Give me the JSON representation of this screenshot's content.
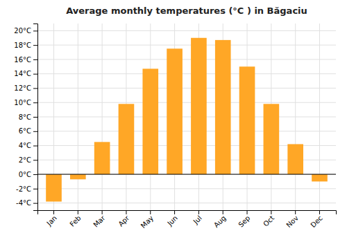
{
  "chart_data": {
    "type": "bar",
    "title": "Average monthly temperatures (°C ) in Băgaciu",
    "categories": [
      "Jan",
      "Feb",
      "Mar",
      "Apr",
      "May",
      "Jun",
      "Jul",
      "Aug",
      "Sep",
      "Oct",
      "Nov",
      "Dec"
    ],
    "values": [
      -3.8,
      -0.7,
      4.5,
      9.8,
      14.7,
      17.5,
      19.0,
      18.7,
      15.0,
      9.8,
      4.2,
      -1.0
    ],
    "color": "#FFA726",
    "ylim": [
      -5,
      21
    ],
    "yticks": [
      {
        "value": -4,
        "label": "-4°C"
      },
      {
        "value": -2,
        "label": "-2°C"
      },
      {
        "value": 0,
        "label": "0°C"
      },
      {
        "value": 2,
        "label": "2°C"
      },
      {
        "value": 4,
        "label": "4°C"
      },
      {
        "value": 6,
        "label": "6°C"
      },
      {
        "value": 8,
        "label": "8°C"
      },
      {
        "value": 10,
        "label": "10°C"
      },
      {
        "value": 12,
        "label": "12°C"
      },
      {
        "value": 14,
        "label": "14°C"
      },
      {
        "value": 16,
        "label": "16°C"
      },
      {
        "value": 18,
        "label": "18°C"
      },
      {
        "value": 20,
        "label": "20°C"
      }
    ],
    "grid": true
  }
}
